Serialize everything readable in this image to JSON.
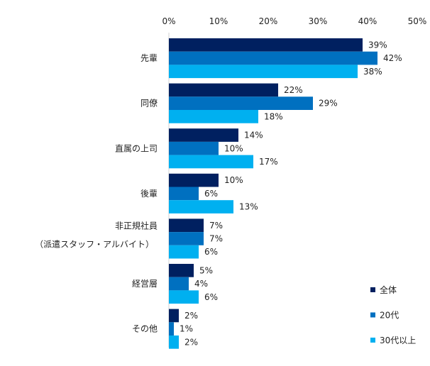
{
  "chart_data": {
    "type": "bar",
    "orientation": "horizontal",
    "categories": [
      "先輩",
      "同僚",
      "直属の上司",
      "後輩",
      "非正規社員\n（派遣スタッフ・アルバイト）",
      "経営層",
      "その他"
    ],
    "series": [
      {
        "name": "全体",
        "color": "#002060",
        "values": [
          39,
          22,
          14,
          10,
          7,
          5,
          2
        ]
      },
      {
        "name": "20代",
        "color": "#0070C0",
        "values": [
          42,
          29,
          10,
          6,
          7,
          4,
          1
        ]
      },
      {
        "name": "30代以上",
        "color": "#00B0F0",
        "values": [
          38,
          18,
          17,
          13,
          6,
          6,
          2
        ]
      }
    ],
    "xlim": [
      0,
      50
    ],
    "xticks": [
      "0%",
      "10%",
      "20%",
      "30%",
      "40%",
      "50%"
    ],
    "value_suffix": "%",
    "grid": false,
    "legend_position": "bottom-right",
    "title": "",
    "xlabel": "",
    "ylabel": ""
  }
}
